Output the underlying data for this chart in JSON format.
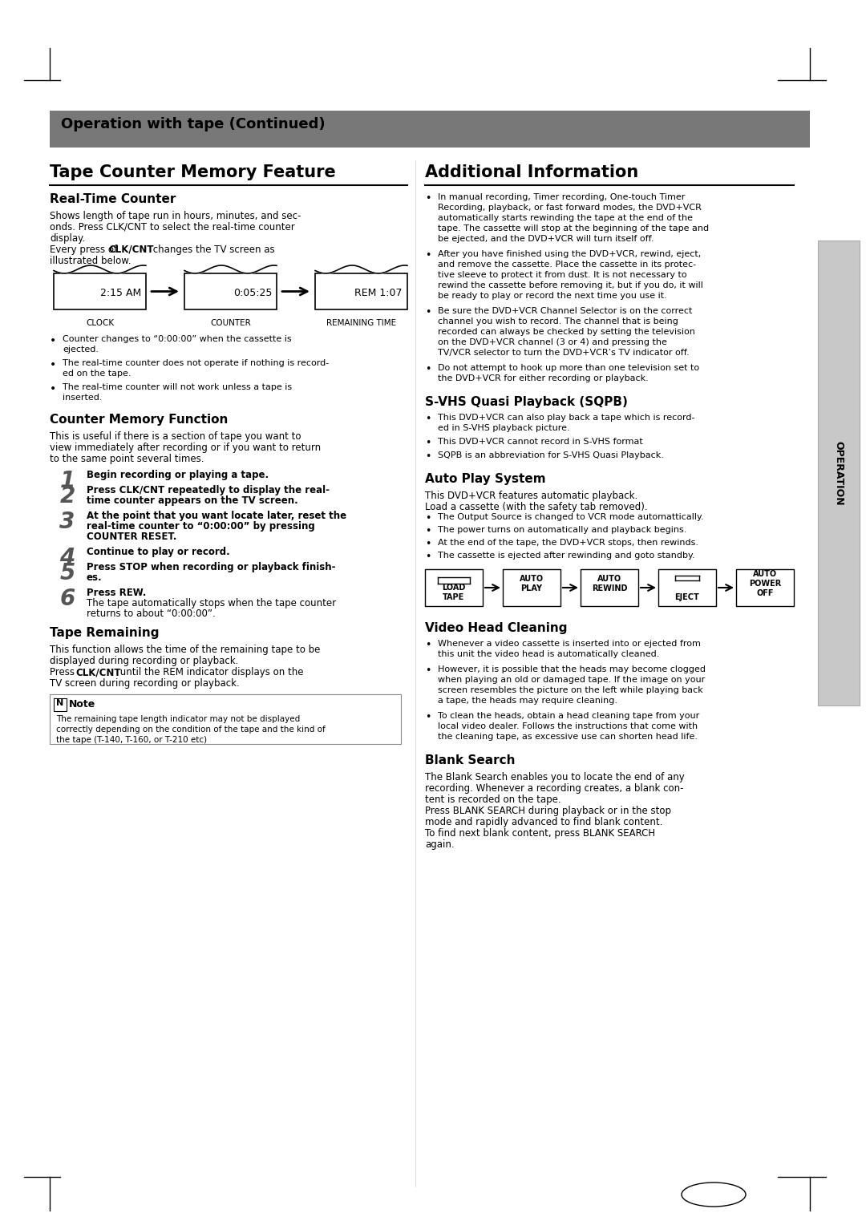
{
  "page_bg": "#ffffff",
  "header_bg": "#7a7a7a",
  "header_text": "Operation with tape (Continued)",
  "section1_title": "Tape Counter Memory Feature",
  "section2_title": "Additional Information",
  "sub1_title": "Real-Time Counter",
  "sub2_title": "Counter Memory Function",
  "sub3_title": "Tape Remaining",
  "sub4_title": "S-VHS Quasi Playback (SQPB)",
  "sub5_title": "Auto Play System",
  "sub6_title": "Video Head Cleaning",
  "sub7_title": "Blank Search",
  "clock_label": "CLOCK",
  "counter_label": "COUNTER",
  "remaining_label": "REMAINING TIME",
  "clock_value": "2:15 AM",
  "counter_value": "0:05:25",
  "remaining_value": "REM 1:07",
  "steps": [
    {
      "num": "1",
      "text": "Begin recording or playing a tape.",
      "bold": true
    },
    {
      "num": "2",
      "text": "Press CLK/CNT repeatedly to display the real-\ntime counter appears on the TV screen.",
      "bold": true
    },
    {
      "num": "3",
      "text": "At the point that you want locate later, reset the\nreal-time counter to “0:00:00” by pressing\nCOUNTER RESET.",
      "bold": true
    },
    {
      "num": "4",
      "text": "Continue to play or record.",
      "bold": true
    },
    {
      "num": "5",
      "text": "Press STOP when recording or playback finish-\nes.",
      "bold": true
    },
    {
      "num": "6",
      "text_bold": "Press REW.",
      "text_normal": "The tape automatically stops when the tape counter\nreturns to about “0:00:00”.",
      "bold": true
    }
  ],
  "auto_play_steps": [
    "LOAD\nTAPE",
    "AUTO\nPLAY",
    "AUTO\nREWIND",
    "EJECT",
    "AUTO\nPOWER\nOFF"
  ],
  "note_symbol": "N",
  "operation_sidebar": "OPERATION"
}
